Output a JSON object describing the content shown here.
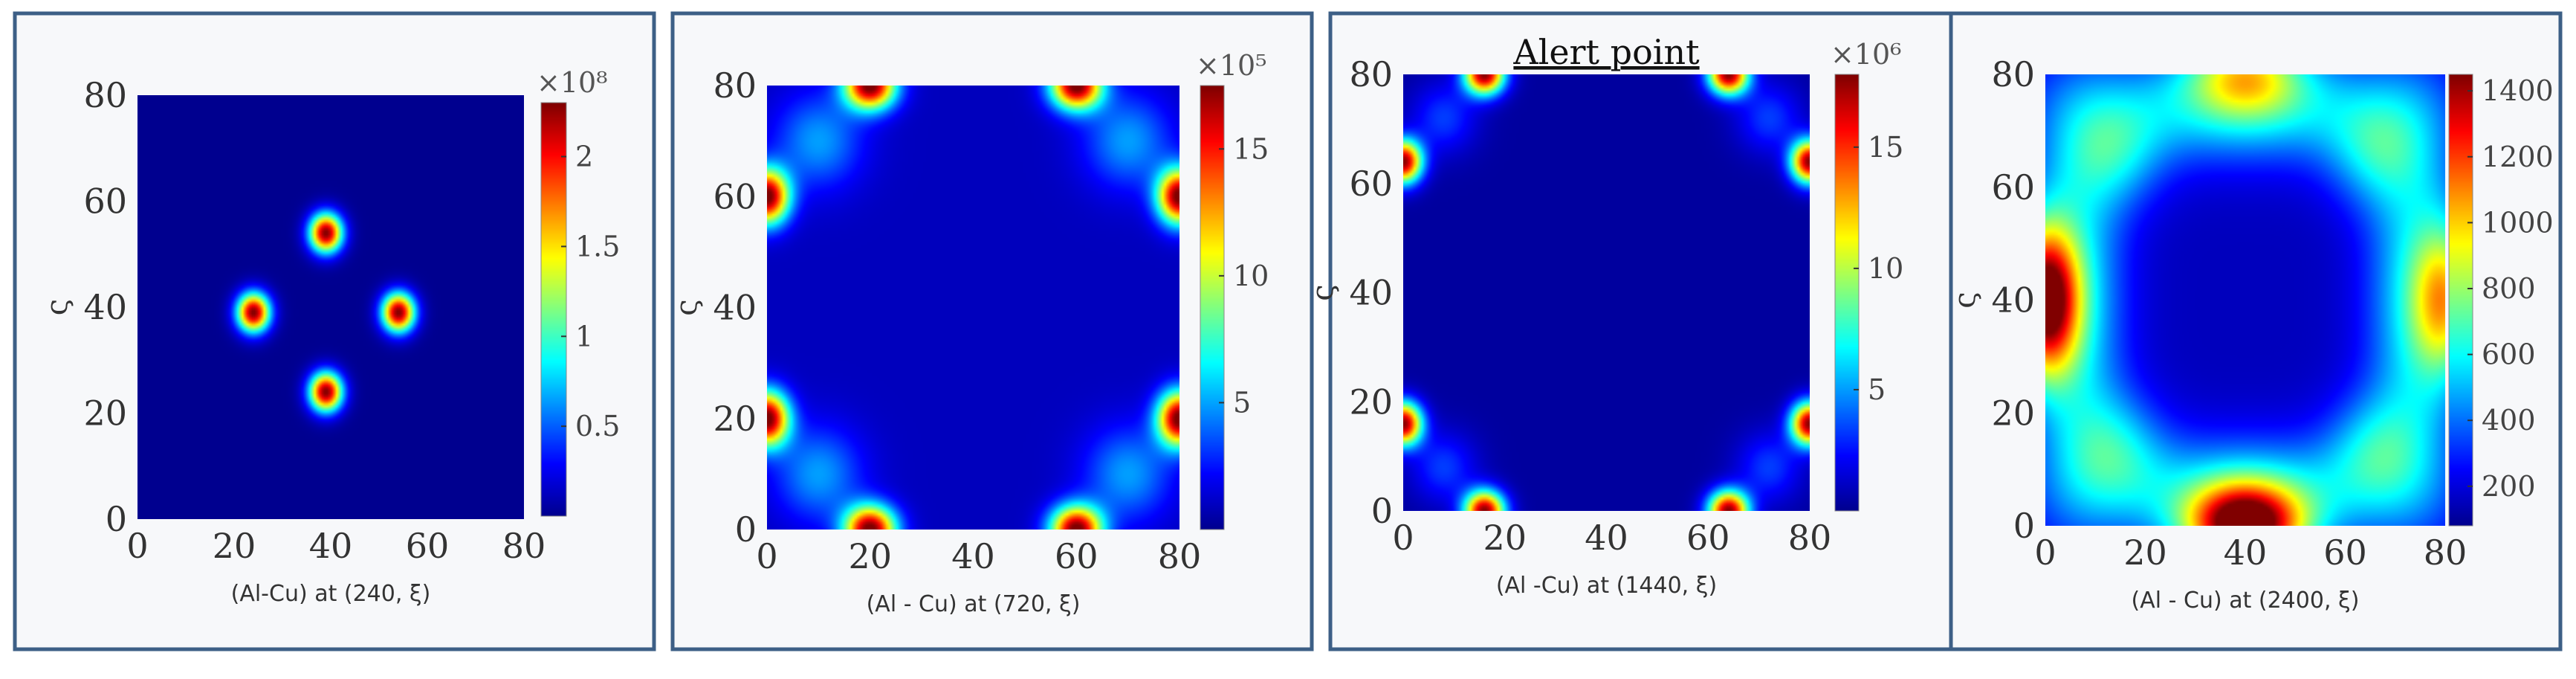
{
  "colormap": [
    "#00008f",
    "#0000ff",
    "#0080ff",
    "#00ffff",
    "#80ff80",
    "#ffff00",
    "#ff8000",
    "#ff0000",
    "#800000"
  ],
  "chart_data": [
    {
      "type": "heatmap",
      "title": "",
      "xlabel": "(Al-Cu) at (240, ξ)",
      "ylabel": "ς",
      "xlim": [
        0,
        80
      ],
      "ylim": [
        0,
        80
      ],
      "x_ticks": [
        "0",
        "20",
        "40",
        "60",
        "80"
      ],
      "y_ticks": [
        "0",
        "20",
        "40",
        "60",
        "80"
      ],
      "colorbar": {
        "exponent": "×10⁸",
        "range": [
          0,
          2.3
        ],
        "ticks": [
          {
            "value": 0.5,
            "label": "0.5"
          },
          {
            "value": 1,
            "label": "1"
          },
          {
            "value": 1.5,
            "label": "1.5"
          },
          {
            "value": 2,
            "label": "2"
          }
        ]
      },
      "background": 0.0,
      "hotspots": [
        {
          "x": 39,
          "y": 54,
          "sx": 2.4,
          "sy": 2.6,
          "amp": 2.3
        },
        {
          "x": 24,
          "y": 39,
          "sx": 2.4,
          "sy": 2.6,
          "amp": 2.3
        },
        {
          "x": 54,
          "y": 39,
          "sx": 2.4,
          "sy": 2.6,
          "amp": 2.3
        },
        {
          "x": 39,
          "y": 24,
          "sx": 2.4,
          "sy": 2.6,
          "amp": 2.3
        }
      ]
    },
    {
      "type": "heatmap",
      "title": "",
      "xlabel": "(Al - Cu) at (720, ξ)",
      "ylabel": "ς",
      "xlim": [
        0,
        80
      ],
      "ylim": [
        0,
        80
      ],
      "x_ticks": [
        "0",
        "20",
        "40",
        "60",
        "80"
      ],
      "y_ticks": [
        "0",
        "20",
        "40",
        "60",
        "80"
      ],
      "colorbar": {
        "exponent": "×10⁵",
        "range": [
          0,
          17.5
        ],
        "ticks": [
          {
            "value": 5,
            "label": "5"
          },
          {
            "value": 10,
            "label": "10"
          },
          {
            "value": 15,
            "label": "15"
          }
        ]
      },
      "background": 0.9,
      "hotspots": [
        {
          "x": 20,
          "y": 80,
          "sx": 3.5,
          "sy": 3,
          "amp": 17
        },
        {
          "x": 60,
          "y": 80,
          "sx": 3.5,
          "sy": 3,
          "amp": 17
        },
        {
          "x": 20,
          "y": 0,
          "sx": 3.5,
          "sy": 3,
          "amp": 17
        },
        {
          "x": 60,
          "y": 0,
          "sx": 3.5,
          "sy": 3,
          "amp": 17
        },
        {
          "x": 0,
          "y": 60,
          "sx": 3,
          "sy": 3.5,
          "amp": 17
        },
        {
          "x": 0,
          "y": 20,
          "sx": 3,
          "sy": 3.5,
          "amp": 17
        },
        {
          "x": 80,
          "y": 60,
          "sx": 3,
          "sy": 3.5,
          "amp": 17
        },
        {
          "x": 80,
          "y": 20,
          "sx": 3,
          "sy": 3.5,
          "amp": 17
        },
        {
          "x": 10,
          "y": 70,
          "sx": 6,
          "sy": 6,
          "amp": 4
        },
        {
          "x": 70,
          "y": 70,
          "sx": 6,
          "sy": 6,
          "amp": 4
        },
        {
          "x": 10,
          "y": 10,
          "sx": 6,
          "sy": 6,
          "amp": 4
        },
        {
          "x": 70,
          "y": 10,
          "sx": 6,
          "sy": 6,
          "amp": 4
        }
      ]
    },
    {
      "type": "heatmap",
      "title": "Alert point",
      "xlabel": "(Al -Cu) at (1440, ξ)",
      "ylabel": "ς",
      "xlim": [
        0,
        80
      ],
      "ylim": [
        0,
        80
      ],
      "x_ticks": [
        "0",
        "20",
        "40",
        "60",
        "80"
      ],
      "y_ticks": [
        "0",
        "20",
        "40",
        "60",
        "80"
      ],
      "colorbar": {
        "exponent": "×10⁶",
        "range": [
          0,
          18
        ],
        "ticks": [
          {
            "value": 5,
            "label": "5"
          },
          {
            "value": 10,
            "label": "10"
          },
          {
            "value": 15,
            "label": "15"
          }
        ]
      },
      "background": 0.3,
      "hotspots": [
        {
          "x": 16,
          "y": 80,
          "sx": 2.8,
          "sy": 2.6,
          "amp": 17.5
        },
        {
          "x": 64,
          "y": 80,
          "sx": 2.8,
          "sy": 2.6,
          "amp": 17.5
        },
        {
          "x": 16,
          "y": 0,
          "sx": 2.8,
          "sy": 2.6,
          "amp": 17.5
        },
        {
          "x": 64,
          "y": 0,
          "sx": 2.8,
          "sy": 2.6,
          "amp": 17.5
        },
        {
          "x": 0,
          "y": 64,
          "sx": 2.6,
          "sy": 2.8,
          "amp": 17.5
        },
        {
          "x": 0,
          "y": 16,
          "sx": 2.6,
          "sy": 2.8,
          "amp": 17.5
        },
        {
          "x": 80,
          "y": 64,
          "sx": 2.6,
          "sy": 2.8,
          "amp": 17.5
        },
        {
          "x": 80,
          "y": 16,
          "sx": 2.6,
          "sy": 2.8,
          "amp": 17.5
        },
        {
          "x": 8,
          "y": 72,
          "sx": 4.5,
          "sy": 4.5,
          "amp": 3
        },
        {
          "x": 72,
          "y": 72,
          "sx": 4.5,
          "sy": 4.5,
          "amp": 3
        },
        {
          "x": 8,
          "y": 8,
          "sx": 4.5,
          "sy": 4.5,
          "amp": 3
        },
        {
          "x": 72,
          "y": 8,
          "sx": 4.5,
          "sy": 4.5,
          "amp": 3
        }
      ]
    },
    {
      "type": "heatmap",
      "title": "",
      "xlabel": "(Al - Cu) at (2400, ξ)",
      "ylabel": "ς",
      "xlim": [
        0,
        80
      ],
      "ylim": [
        0,
        80
      ],
      "x_ticks": [
        "0",
        "20",
        "40",
        "60",
        "80"
      ],
      "y_ticks": [
        "0",
        "20",
        "40",
        "60",
        "80"
      ],
      "colorbar": {
        "exponent": "",
        "range": [
          80,
          1450
        ],
        "ticks": [
          {
            "value": 200,
            "label": "200"
          },
          {
            "value": 400,
            "label": "400"
          },
          {
            "value": 600,
            "label": "600"
          },
          {
            "value": 800,
            "label": "800"
          },
          {
            "value": 1000,
            "label": "1000"
          },
          {
            "value": 1200,
            "label": "1200"
          },
          {
            "value": 1400,
            "label": "1400"
          }
        ]
      },
      "background": 150,
      "hotspots": [
        {
          "x": 40,
          "y": 0,
          "sx": 8,
          "sy": 5,
          "amp": 1300
        },
        {
          "x": 40,
          "y": 80,
          "sx": 8,
          "sy": 5,
          "amp": 600
        },
        {
          "x": 0,
          "y": 40,
          "sx": 4.5,
          "sy": 9,
          "amp": 1250
        },
        {
          "x": 80,
          "y": 40,
          "sx": 4.5,
          "sy": 9,
          "amp": 650
        },
        {
          "x": 40,
          "y": 6,
          "sx": 24,
          "sy": 7,
          "amp": 420
        },
        {
          "x": 40,
          "y": 74,
          "sx": 24,
          "sy": 7,
          "amp": 420
        },
        {
          "x": 6,
          "y": 40,
          "sx": 7,
          "sy": 24,
          "amp": 420
        },
        {
          "x": 74,
          "y": 40,
          "sx": 7,
          "sy": 24,
          "amp": 420
        },
        {
          "x": 14,
          "y": 14,
          "sx": 7,
          "sy": 7,
          "amp": 300
        },
        {
          "x": 66,
          "y": 14,
          "sx": 7,
          "sy": 7,
          "amp": 300
        },
        {
          "x": 14,
          "y": 66,
          "sx": 7,
          "sy": 7,
          "amp": 300
        },
        {
          "x": 66,
          "y": 66,
          "sx": 7,
          "sy": 7,
          "amp": 300
        }
      ]
    }
  ]
}
